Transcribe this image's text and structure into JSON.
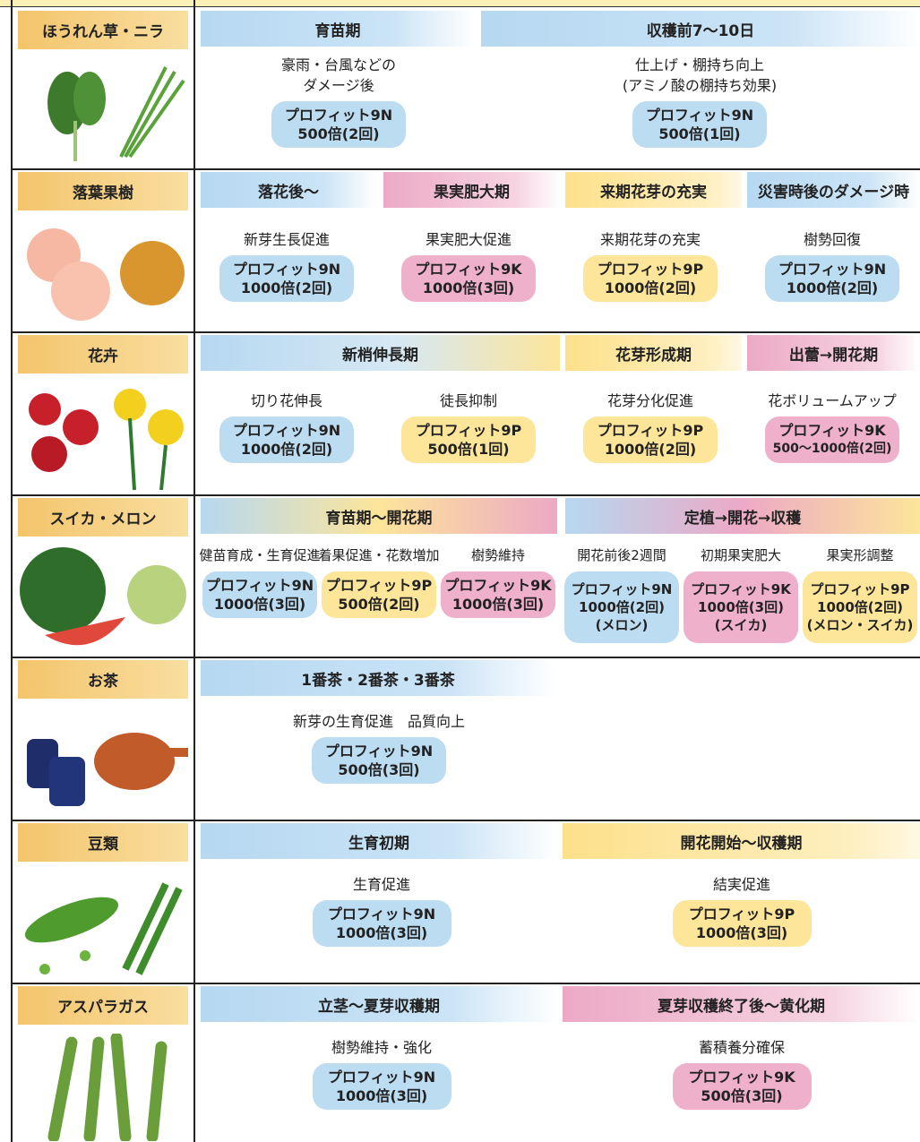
{
  "rows": [
    {
      "name": "ほうれん草・ニラ",
      "stages": [
        "育苗期",
        "収穫前7〜10日"
      ],
      "items": [
        {
          "desc": [
            "豪雨・台風などの",
            "ダメージ後"
          ],
          "product": "プロフィット9N",
          "rate": "500倍(2回)"
        },
        {
          "desc": [
            "仕上げ・棚持ち向上",
            "(アミノ酸の棚持ち効果)"
          ],
          "product": "プロフィット9N",
          "rate": "500倍(1回)"
        }
      ]
    },
    {
      "name": "落葉果樹",
      "stages": [
        "落花後〜",
        "果実肥大期",
        "来期花芽の充実",
        "災害時後のダメージ時"
      ],
      "items": [
        {
          "desc": [
            "新芽生長促進"
          ],
          "product": "プロフィット9N",
          "rate": "1000倍(2回)"
        },
        {
          "desc": [
            "果実肥大促進"
          ],
          "product": "プロフィット9K",
          "rate": "1000倍(3回)"
        },
        {
          "desc": [
            "来期花芽の充実"
          ],
          "product": "プロフィット9P",
          "rate": "1000倍(2回)"
        },
        {
          "desc": [
            "樹勢回復"
          ],
          "product": "プロフィット9N",
          "rate": "1000倍(2回)"
        }
      ]
    },
    {
      "name": "花卉",
      "stages": [
        "新梢伸長期",
        "花芽形成期",
        "出蕾→開花期"
      ],
      "items": [
        {
          "desc": [
            "切り花伸長"
          ],
          "product": "プロフィット9N",
          "rate": "1000倍(2回)"
        },
        {
          "desc": [
            "徒長抑制"
          ],
          "product": "プロフィット9P",
          "rate": "500倍(1回)"
        },
        {
          "desc": [
            "花芽分化促進"
          ],
          "product": "プロフィット9P",
          "rate": "1000倍(2回)"
        },
        {
          "desc": [
            "花ボリュームアップ"
          ],
          "product": "プロフィット9K",
          "rate": "500〜1000倍(2回)"
        }
      ]
    },
    {
      "name": "スイカ・メロン",
      "stages": [
        "育苗期〜開花期",
        "定植→開花→収穫"
      ],
      "items": [
        {
          "desc": [
            "健苗育成・生育促進"
          ],
          "product": "プロフィット9N",
          "rate": "1000倍(3回)"
        },
        {
          "desc": [
            "着果促進・花数増加"
          ],
          "product": "プロフィット9P",
          "rate": "500倍(2回)"
        },
        {
          "desc": [
            "樹勢維持"
          ],
          "product": "プロフィット9K",
          "rate": "1000倍(3回)"
        },
        {
          "desc": [
            "開花前後2週間"
          ],
          "product": "プロフィット9N",
          "rate": "1000倍(2回)",
          "note": "(メロン)"
        },
        {
          "desc": [
            "初期果実肥大"
          ],
          "product": "プロフィット9K",
          "rate": "1000倍(3回)",
          "note": "(スイカ)"
        },
        {
          "desc": [
            "果実形調整"
          ],
          "product": "プロフィット9P",
          "rate": "1000倍(2回)",
          "note": "(メロン・スイカ)"
        }
      ]
    },
    {
      "name": "お茶",
      "stages": [
        "1番茶・2番茶・3番茶"
      ],
      "items": [
        {
          "desc": [
            "新芽の生育促進　品質向上"
          ],
          "product": "プロフィット9N",
          "rate": "500倍(3回)"
        }
      ]
    },
    {
      "name": "豆類",
      "stages": [
        "生育初期",
        "開花開始〜収穫期"
      ],
      "items": [
        {
          "desc": [
            "生育促進"
          ],
          "product": "プロフィット9N",
          "rate": "1000倍(3回)"
        },
        {
          "desc": [
            "結実促進"
          ],
          "product": "プロフィット9P",
          "rate": "1000倍(3回)"
        }
      ]
    },
    {
      "name": "アスパラガス",
      "stages": [
        "立茎〜夏芽収穫期",
        "夏芽収穫終了後〜黄化期"
      ],
      "items": [
        {
          "desc": [
            "樹勢維持・強化"
          ],
          "product": "プロフィット9N",
          "rate": "1000倍(3回)"
        },
        {
          "desc": [
            "蓄積養分確保"
          ],
          "product": "プロフィット9K",
          "rate": "500倍(3回)"
        }
      ]
    }
  ]
}
